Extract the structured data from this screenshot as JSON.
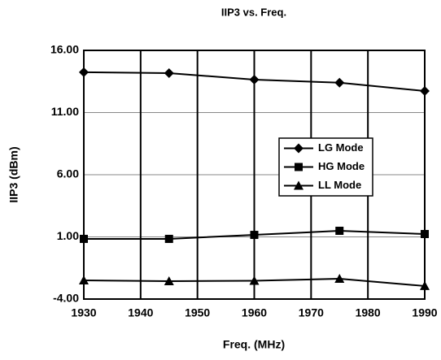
{
  "chart_data": {
    "type": "line",
    "title": "IIP3 vs. Freq.",
    "xlabel": "Freq. (MHz)",
    "ylabel": "IIP3 (dBm)",
    "x": [
      1930,
      1945,
      1960,
      1975,
      1990
    ],
    "series": [
      {
        "name": "LG Mode",
        "color": "#000000",
        "marker": "diamond",
        "values": [
          14.24,
          14.17,
          13.65,
          13.4,
          12.73
        ]
      },
      {
        "name": "HG Mode",
        "color": "#000000",
        "marker": "square",
        "values": [
          0.84,
          0.84,
          1.16,
          1.49,
          1.23
        ]
      },
      {
        "name": "LL Mode",
        "color": "#000000",
        "marker": "triangle",
        "values": [
          -2.5,
          -2.56,
          -2.53,
          -2.37,
          -2.95
        ]
      }
    ],
    "xlim": [
      1930,
      1990
    ],
    "xticks": [
      1930,
      1940,
      1950,
      1960,
      1970,
      1980,
      1990
    ],
    "ylim": [
      -4,
      16
    ],
    "yticks": [
      {
        "value": -4,
        "label": "-4.00"
      },
      {
        "value": 1,
        "label": "1.00"
      },
      {
        "value": 6,
        "label": "6.00"
      },
      {
        "value": 11,
        "label": "11.00"
      },
      {
        "value": 16,
        "label": "16.00"
      }
    ],
    "grid": true,
    "legend": "right"
  }
}
